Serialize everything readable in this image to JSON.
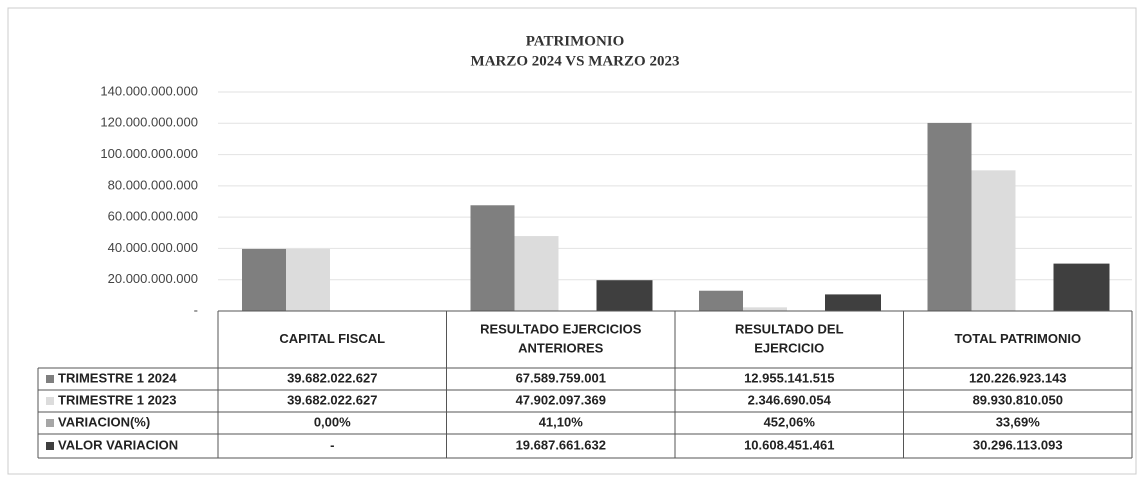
{
  "chart_data": {
    "type": "bar",
    "title": "PATRIMONIO",
    "subtitle": "MARZO 2024 VS MARZO 2023",
    "categories": [
      "CAPITAL FISCAL",
      "RESULTADO EJERCICIOS ANTERIORES",
      "RESULTADO DEL EJERCICIO",
      "TOTAL PATRIMONIO"
    ],
    "series": [
      {
        "name": "TRIMESTRE 1 2024",
        "color": "#7f7f7f",
        "values": [
          39682022627,
          67589759001,
          12955141515,
          120226923143
        ],
        "value_labels": [
          "39.682.022.627",
          "67.589.759.001",
          "12.955.141.515",
          "120.226.923.143"
        ]
      },
      {
        "name": "TRIMESTRE 1 2023",
        "color": "#dcdcdc",
        "values": [
          39682022627,
          47902097369,
          2346690054,
          89930810050
        ],
        "value_labels": [
          "39.682.022.627",
          "47.902.097.369",
          "2.346.690.054",
          "89.930.810.050"
        ]
      },
      {
        "name": "VARIACION(%)",
        "color": "#a6a6a6",
        "values": [
          0,
          41.1,
          452.06,
          33.69
        ],
        "value_labels": [
          "0,00%",
          "41,10%",
          "452,06%",
          "33,69%"
        ]
      },
      {
        "name": "VALOR VARIACION",
        "color": "#3f3f3f",
        "values": [
          0,
          19687661632,
          10608451461,
          30296113093
        ],
        "value_labels": [
          "-",
          "19.687.661.632",
          "10.608.451.461",
          "30.296.113.093"
        ]
      }
    ],
    "ylim": [
      0,
      140000000000
    ],
    "yticks": [
      {
        "value": 0,
        "label": "-"
      },
      {
        "value": 20000000000,
        "label": "20.000.000.000"
      },
      {
        "value": 40000000000,
        "label": "40.000.000.000"
      },
      {
        "value": 60000000000,
        "label": "60.000.000.000"
      },
      {
        "value": 80000000000,
        "label": "80.000.000.000"
      },
      {
        "value": 100000000000,
        "label": "100.000.000.000"
      },
      {
        "value": 120000000000,
        "label": "120.000.000.000"
      },
      {
        "value": 140000000000,
        "label": "140.000.000.000"
      }
    ],
    "grid": true
  }
}
